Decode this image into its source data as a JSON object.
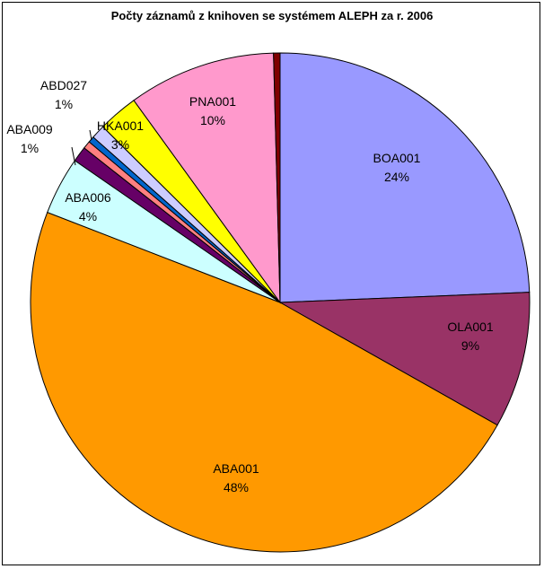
{
  "chart_data": {
    "type": "pie",
    "title": "Počty záznamů z knihoven se systémem ALEPH za r. 2006",
    "start_angle_deg": 90,
    "direction": "clockwise",
    "slices": [
      {
        "name": "BOA001",
        "value": 24.35,
        "label": "BOA001",
        "pct_label": "24%",
        "color": "#9999ff"
      },
      {
        "name": "OLA001",
        "value": 8.83,
        "label": "OLA001",
        "pct_label": "9%",
        "color": "#993366"
      },
      {
        "name": "ABA001",
        "value": 47.7,
        "label": "ABA001",
        "pct_label": "48%",
        "color": "#ff9900"
      },
      {
        "name": "ABA006",
        "value": 3.75,
        "label": "ABA006",
        "pct_label": "4%",
        "color": "#ccffff"
      },
      {
        "name": "unlabeled-1",
        "value": 1.0,
        "label": "",
        "pct_label": "",
        "color": "#660066"
      },
      {
        "name": "ABA009",
        "value": 0.5,
        "label": "ABA009",
        "pct_label": "1%",
        "color": "#ff8080"
      },
      {
        "name": "unlabeled-2",
        "value": 0.4,
        "label": "",
        "pct_label": "",
        "color": "#0066cc"
      },
      {
        "name": "ABD027",
        "value": 0.9,
        "label": "ABD027",
        "pct_label": "1%",
        "color": "#ccccff"
      },
      {
        "name": "HKA001",
        "value": 2.6,
        "label": "HKA001",
        "pct_label": "3%",
        "color": "#ffff00"
      },
      {
        "name": "PNA001",
        "value": 9.55,
        "label": "PNA001",
        "pct_label": "10%",
        "color": "#ff99cc"
      },
      {
        "name": "unlabeled-3",
        "value": 0.42,
        "label": "",
        "pct_label": "",
        "color": "#800000"
      }
    ],
    "legend": "none",
    "outline_color": "#000000"
  }
}
